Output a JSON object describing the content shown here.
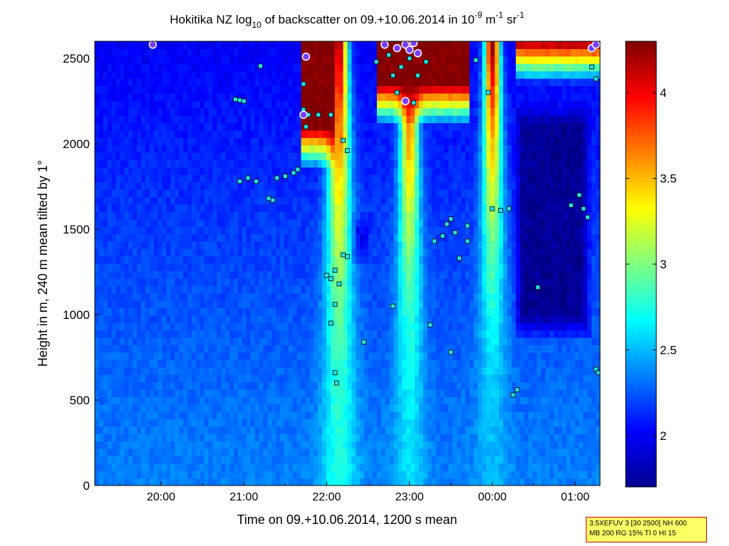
{
  "chart_data": {
    "type": "heatmap",
    "title": "Hokitika NZ log10 of backscatter on 09.+10.06.2014 in 10-9 m-1 sr-1",
    "title_parts": {
      "prefix": "Hokitika NZ log",
      "log_base": "10",
      "middle": " of backscatter on 09.+10.06.2014 in 10",
      "unit_exp1": "-9",
      "unit_mid": " m",
      "unit_exp2": "-1",
      "unit_mid2": " sr",
      "unit_exp3": "-1"
    },
    "xlabel": "Time on 09.+10.06.2014, 1200 s mean",
    "ylabel": "Height in m, 240 m mean tilted by 1°",
    "x_ticks": [
      "20:00",
      "21:00",
      "22:00",
      "23:00",
      "00:00",
      "01:00"
    ],
    "y_ticks": [
      "0",
      "500",
      "1000",
      "1500",
      "2000",
      "2500"
    ],
    "ylim": [
      0,
      2600
    ],
    "xlim_hours": [
      19.2,
      25.3
    ],
    "colorbar": {
      "ticks": [
        "2",
        "2.5",
        "3",
        "3.5",
        "4"
      ],
      "range": [
        1.7,
        4.3
      ],
      "colormap": "jet"
    },
    "layers": {
      "base": {
        "value": 2.35,
        "top_value": 2.0
      },
      "plumes": [
        {
          "center": 22.15,
          "width": 0.55,
          "value": 2.9,
          "top_value": 4.3,
          "surface": 2.75
        },
        {
          "center": 23.0,
          "width": 0.5,
          "value": 3.1,
          "top_value": 4.3,
          "surface": 2.6
        },
        {
          "center": 24.0,
          "width": 0.5,
          "value": 3.0,
          "top_value": 4.3,
          "surface": 2.5
        }
      ],
      "cloud_top": [
        {
          "from": 21.7,
          "to": 22.1,
          "base_height": 1850,
          "value": 4.3
        },
        {
          "from": 22.6,
          "to": 23.7,
          "base_height": 2100,
          "value": 4.3
        },
        {
          "from": 24.3,
          "to": 25.3,
          "base_height": 2350,
          "value": 4.3
        }
      ],
      "dark_zones": [
        {
          "from": 24.25,
          "to": 25.2,
          "height_from": 850,
          "height_to": 2250,
          "value": 1.75
        },
        {
          "from": 22.3,
          "to": 22.55,
          "height_from": 1300,
          "height_to": 1600,
          "value": 1.95
        }
      ]
    },
    "detections": [
      {
        "t": 20.9,
        "h": 2260
      },
      {
        "t": 20.95,
        "h": 2255
      },
      {
        "t": 21.0,
        "h": 2250
      },
      {
        "t": 21.2,
        "h": 2455
      },
      {
        "t": 20.95,
        "h": 1780
      },
      {
        "t": 21.05,
        "h": 1800
      },
      {
        "t": 21.15,
        "h": 1780
      },
      {
        "t": 21.3,
        "h": 1680
      },
      {
        "t": 21.35,
        "h": 1670
      },
      {
        "t": 21.4,
        "h": 1800
      },
      {
        "t": 21.5,
        "h": 1810
      },
      {
        "t": 21.6,
        "h": 1830
      },
      {
        "t": 21.65,
        "h": 1850
      },
      {
        "t": 21.72,
        "h": 2350
      },
      {
        "t": 21.72,
        "h": 2200
      },
      {
        "t": 21.75,
        "h": 2100
      },
      {
        "t": 21.78,
        "h": 2170
      },
      {
        "t": 21.9,
        "h": 2170
      },
      {
        "t": 22.05,
        "h": 2170
      },
      {
        "t": 22.2,
        "h": 2020
      },
      {
        "t": 22.25,
        "h": 1960
      },
      {
        "t": 22.0,
        "h": 1230
      },
      {
        "t": 22.05,
        "h": 1210
      },
      {
        "t": 22.1,
        "h": 1260
      },
      {
        "t": 22.15,
        "h": 1180
      },
      {
        "t": 22.2,
        "h": 1350
      },
      {
        "t": 22.25,
        "h": 1340
      },
      {
        "t": 22.1,
        "h": 1060
      },
      {
        "t": 22.05,
        "h": 950
      },
      {
        "t": 22.1,
        "h": 660
      },
      {
        "t": 22.12,
        "h": 600
      },
      {
        "t": 22.45,
        "h": 840
      },
      {
        "t": 22.6,
        "h": 2480
      },
      {
        "t": 22.75,
        "h": 2520
      },
      {
        "t": 22.8,
        "h": 2400
      },
      {
        "t": 22.85,
        "h": 2300
      },
      {
        "t": 22.9,
        "h": 2450
      },
      {
        "t": 23.0,
        "h": 2500
      },
      {
        "t": 23.1,
        "h": 2400
      },
      {
        "t": 23.2,
        "h": 2480
      },
      {
        "t": 23.05,
        "h": 2240
      },
      {
        "t": 22.8,
        "h": 1050
      },
      {
        "t": 23.25,
        "h": 940
      },
      {
        "t": 23.3,
        "h": 1430
      },
      {
        "t": 23.4,
        "h": 1460
      },
      {
        "t": 23.45,
        "h": 1530
      },
      {
        "t": 23.5,
        "h": 1560
      },
      {
        "t": 23.55,
        "h": 1480
      },
      {
        "t": 23.6,
        "h": 1330
      },
      {
        "t": 23.7,
        "h": 1430
      },
      {
        "t": 23.7,
        "h": 1520
      },
      {
        "t": 23.5,
        "h": 780
      },
      {
        "t": 23.8,
        "h": 2490
      },
      {
        "t": 23.95,
        "h": 2300
      },
      {
        "t": 24.0,
        "h": 1620
      },
      {
        "t": 24.1,
        "h": 1610
      },
      {
        "t": 24.2,
        "h": 1620
      },
      {
        "t": 24.25,
        "h": 530
      },
      {
        "t": 24.3,
        "h": 560
      },
      {
        "t": 24.55,
        "h": 1160
      },
      {
        "t": 24.95,
        "h": 1640
      },
      {
        "t": 25.05,
        "h": 1700
      },
      {
        "t": 25.1,
        "h": 1620
      },
      {
        "t": 25.15,
        "h": 1570
      },
      {
        "t": 25.25,
        "h": 680
      },
      {
        "t": 25.28,
        "h": 660
      },
      {
        "t": 25.2,
        "h": 2450
      },
      {
        "t": 25.25,
        "h": 2380
      }
    ],
    "saturated_markers": [
      {
        "t": 19.9,
        "h": 2580
      },
      {
        "t": 21.75,
        "h": 2510
      },
      {
        "t": 21.72,
        "h": 2170
      },
      {
        "t": 22.7,
        "h": 2580
      },
      {
        "t": 22.85,
        "h": 2560
      },
      {
        "t": 22.95,
        "h": 2580
      },
      {
        "t": 23.0,
        "h": 2550
      },
      {
        "t": 23.05,
        "h": 2590
      },
      {
        "t": 23.1,
        "h": 2530
      },
      {
        "t": 22.95,
        "h": 2250
      },
      {
        "t": 25.2,
        "h": 2560
      },
      {
        "t": 25.25,
        "h": 2580
      }
    ]
  },
  "info_box": {
    "line1": "3.5XEFUV 3 [30 2500] NH 600",
    "line2": "MB 200 RG 15% TI 0 HI 15"
  }
}
